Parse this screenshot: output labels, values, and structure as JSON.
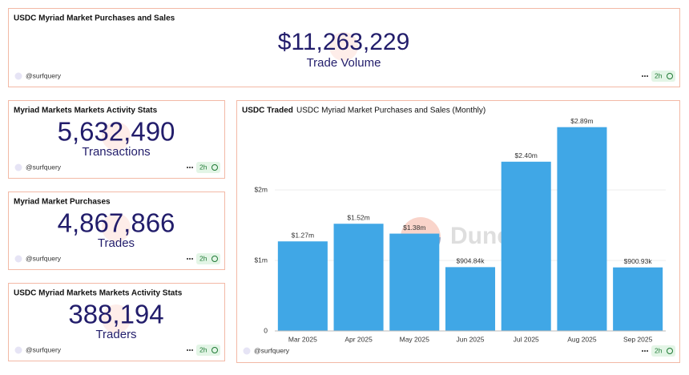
{
  "counters": [
    {
      "title": "USDC Myriad Market Purchases and Sales",
      "value": "$11,263,229",
      "label": "Trade Volume",
      "author": "@surfquery",
      "age": "2h"
    },
    {
      "title": "Myriad Markets Markets Activity Stats",
      "value": "5,632,490",
      "label": "Transactions",
      "author": "@surfquery",
      "age": "2h"
    },
    {
      "title": "Myriad Market Purchases",
      "value": "4,867,866",
      "label": "Trades",
      "author": "@surfquery",
      "age": "2h"
    },
    {
      "title": "USDC Myriad Markets Markets Activity Stats",
      "value": "388,194",
      "label": "Traders",
      "author": "@surfquery",
      "age": "2h"
    }
  ],
  "chart_card": {
    "author": "@surfquery",
    "age": "2h"
  },
  "chart_data": {
    "type": "bar",
    "title": "USDC Traded",
    "subtitle": "USDC Myriad Market Purchases and Sales (Monthly)",
    "categories": [
      "Mar 2025",
      "Apr 2025",
      "May 2025",
      "Jun 2025",
      "Jul 2025",
      "Aug 2025",
      "Sep 2025"
    ],
    "values": [
      1270000,
      1520000,
      1380000,
      904840,
      2400000,
      2890000,
      900930
    ],
    "value_labels": [
      "$1.27m",
      "$1.52m",
      "$1.38m",
      "$904.84k",
      "$2.40m",
      "$2.89m",
      "$900.93k"
    ],
    "color": "#40a7e6",
    "ylim": [
      0,
      3000000
    ],
    "yticks": [
      0,
      {
        "value": 1000000,
        "label": "$1m"
      },
      {
        "value": 2000000,
        "label": "$2m"
      }
    ],
    "grid": true,
    "watermark": "Dune"
  }
}
